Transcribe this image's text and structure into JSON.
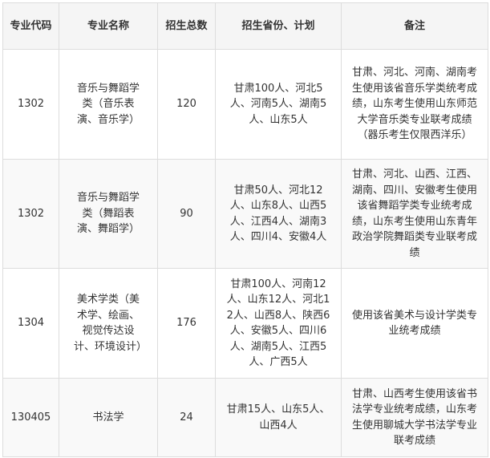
{
  "headers": [
    "专业代码",
    "专业名称",
    "招生总数",
    "招生省份、计划",
    "备注"
  ],
  "rows": [
    {
      "code": "1302",
      "name": "音乐与舞蹈学类（音乐表演、音乐学）",
      "total": "120",
      "plan": "甘肃100人、河北5人、河南5人、湖南5人、山东5人",
      "note": "甘肃、河北、河南、湖南考生使用该省音乐学类统考成绩，山东考生使用山东师范大学音乐类专业联考成绩（器乐考生仅限西洋乐）"
    },
    {
      "code": "1302",
      "name": "音乐与舞蹈学类（舞蹈表演、舞蹈学）",
      "total": "90",
      "plan": "甘肃50人、河北12人、山东8人、山西5人、江西4人、湖南3人、四川4、安徽4人",
      "note": "甘肃、河北、山西、江西、湖南、四川、安徽考生使用该省舞蹈学类专业统考成绩，山东考生使用山东青年政治学院舞蹈类专业联考成绩"
    },
    {
      "code": "1304",
      "name": "美术学类（美术学、绘画、视觉传达设计、环境设计）",
      "total": "176",
      "plan": "甘肃100人、河南12人、山东12人、河北12人、山西8人、陕西6人、安徽5人、四川6人、湖南5人、江西5人、广西5人",
      "note": "使用该省美术与设计学类专业统考成绩"
    },
    {
      "code": "130405",
      "name": "书法学",
      "total": "24",
      "plan": "甘肃15人、山东5人、山西4人",
      "note": "甘肃、山西考生使用该省书法学专业统考成绩，山东考生使用聊城大学书法学专业联考成绩"
    }
  ]
}
